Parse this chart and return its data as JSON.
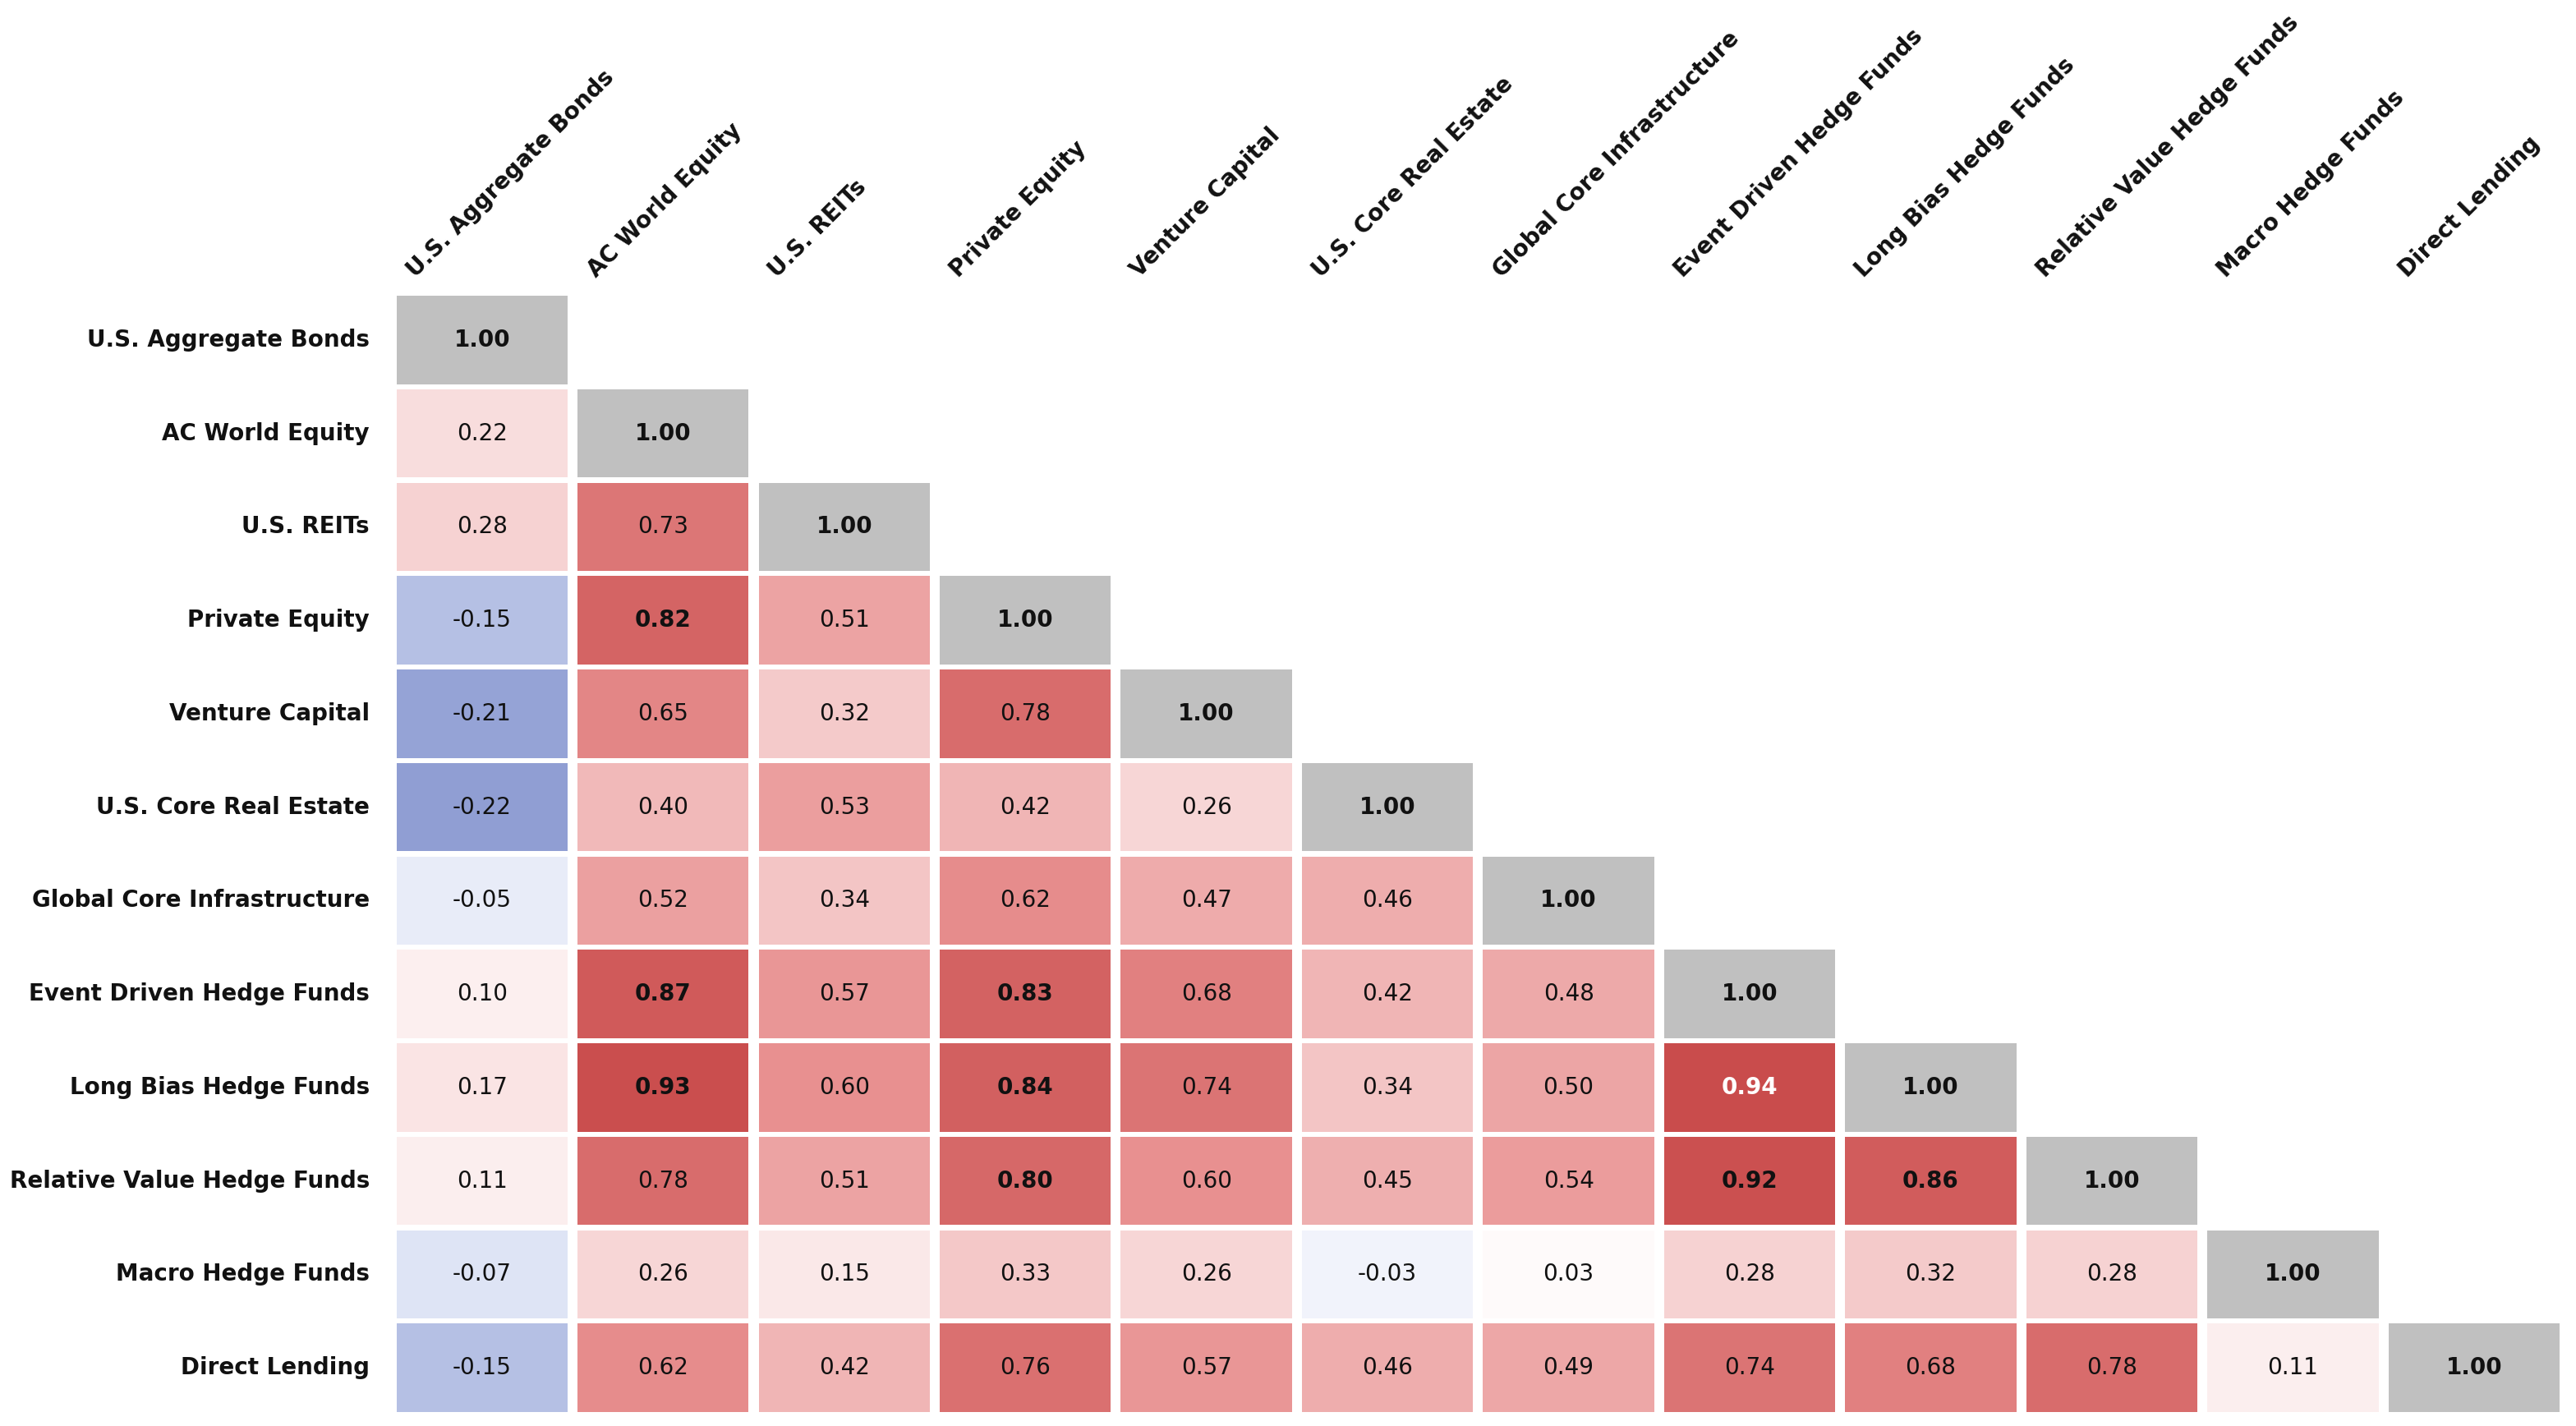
{
  "labels": [
    "U.S. Aggregate Bonds",
    "AC World Equity",
    "U.S. REITs",
    "Private Equity",
    "Venture Capital",
    "U.S. Core Real Estate",
    "Global Core Infrastructure",
    "Event Driven Hedge Funds",
    "Long Bias Hedge Funds",
    "Relative Value Hedge Funds",
    "Macro Hedge Funds",
    "Direct Lending"
  ],
  "matrix": [
    [
      1.0,
      null,
      null,
      null,
      null,
      null,
      null,
      null,
      null,
      null,
      null,
      null
    ],
    [
      0.22,
      1.0,
      null,
      null,
      null,
      null,
      null,
      null,
      null,
      null,
      null,
      null
    ],
    [
      0.28,
      0.73,
      1.0,
      null,
      null,
      null,
      null,
      null,
      null,
      null,
      null,
      null
    ],
    [
      -0.15,
      0.82,
      0.51,
      1.0,
      null,
      null,
      null,
      null,
      null,
      null,
      null,
      null
    ],
    [
      -0.21,
      0.65,
      0.32,
      0.78,
      1.0,
      null,
      null,
      null,
      null,
      null,
      null,
      null
    ],
    [
      -0.22,
      0.4,
      0.53,
      0.42,
      0.26,
      1.0,
      null,
      null,
      null,
      null,
      null,
      null
    ],
    [
      -0.05,
      0.52,
      0.34,
      0.62,
      0.47,
      0.46,
      1.0,
      null,
      null,
      null,
      null,
      null
    ],
    [
      0.1,
      0.87,
      0.57,
      0.83,
      0.68,
      0.42,
      0.48,
      1.0,
      null,
      null,
      null,
      null
    ],
    [
      0.17,
      0.93,
      0.6,
      0.84,
      0.74,
      0.34,
      0.5,
      0.94,
      1.0,
      null,
      null,
      null
    ],
    [
      0.11,
      0.78,
      0.51,
      0.8,
      0.6,
      0.45,
      0.54,
      0.92,
      0.86,
      1.0,
      null,
      null
    ],
    [
      -0.07,
      0.26,
      0.15,
      0.33,
      0.26,
      -0.03,
      0.03,
      0.28,
      0.32,
      0.28,
      1.0,
      null
    ],
    [
      -0.15,
      0.62,
      0.42,
      0.76,
      0.57,
      0.46,
      0.49,
      0.74,
      0.68,
      0.78,
      0.11,
      1.0
    ]
  ],
  "background_color": "#ffffff",
  "diagonal_color": "#c0c0c0",
  "positive_high_color": "#c44040",
  "positive_mid_color": "#e89090",
  "positive_low_color": "#f7d8d8",
  "negative_high_color": "#3050a0",
  "negative_mid_color": "#8090cc",
  "negative_low_color": "#d0d8f0",
  "text_color_dark": "#111111",
  "font_size_cell": 20,
  "font_size_row_label": 20,
  "font_size_col_label": 20
}
